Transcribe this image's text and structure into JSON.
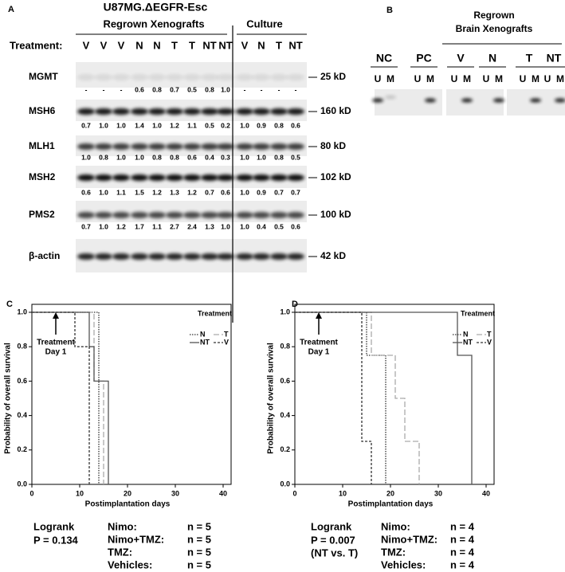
{
  "panels": [
    "A",
    "B",
    "C",
    "D"
  ],
  "panel_a": {
    "title": "U87MG.ΔEGFR-Esc",
    "groups": [
      "Regrown Xenografts",
      "Culture"
    ],
    "treatment_label": "Treatment:",
    "lanes": [
      "V",
      "V",
      "V",
      "N",
      "N",
      "T",
      "T",
      "NT",
      "NT",
      "V",
      "N",
      "T",
      "NT"
    ],
    "rows": [
      {
        "name": "MGMT",
        "size": "25 kD",
        "values": [
          "-",
          "-",
          "-",
          "0.6",
          "0.8",
          "0.7",
          "0.5",
          "0.8",
          "1.0",
          "-",
          "-",
          "-",
          "-"
        ]
      },
      {
        "name": "MSH6",
        "size": "160 kD",
        "values": [
          "0.7",
          "1.0",
          "1.0",
          "1.4",
          "1.0",
          "1.2",
          "1.1",
          "0.5",
          "0.2",
          "1.0",
          "0.9",
          "0.8",
          "0.6"
        ]
      },
      {
        "name": "MLH1",
        "size": "80 kD",
        "values": [
          "1.0",
          "0.8",
          "1.0",
          "1.0",
          "0.8",
          "0.8",
          "0.6",
          "0.4",
          "0.3",
          "1.0",
          "1.0",
          "0.8",
          "0.5"
        ]
      },
      {
        "name": "MSH2",
        "size": "102 kD",
        "values": [
          "0.6",
          "1.0",
          "1.1",
          "1.5",
          "1.2",
          "1.3",
          "1.2",
          "0.7",
          "0.6",
          "1.0",
          "0.9",
          "0.7",
          "0.7"
        ]
      },
      {
        "name": "PMS2",
        "size": "100 kD",
        "values": [
          "0.7",
          "1.0",
          "1.2",
          "1.7",
          "1.1",
          "2.7",
          "2.4",
          "1.3",
          "1.0",
          "1.0",
          "0.4",
          "0.5",
          "0.6"
        ]
      },
      {
        "name": "β-actin",
        "size": "42 kD"
      }
    ]
  },
  "panel_b": {
    "title": [
      "Regrown",
      "Brain Xenografts"
    ],
    "groups": [
      {
        "name": "NC",
        "lanes": [
          "U",
          "M"
        ]
      },
      {
        "name": "PC",
        "lanes": [
          "U",
          "M"
        ]
      },
      {
        "name": "V",
        "lanes": [
          "U",
          "M"
        ]
      },
      {
        "name": "N",
        "lanes": [
          "U",
          "M"
        ]
      },
      {
        "name": "T",
        "lanes": [
          "U",
          "M"
        ]
      },
      {
        "name": "NT",
        "lanes": [
          "U",
          "M"
        ]
      }
    ]
  },
  "chart_data": [
    {
      "type": "line",
      "step": "post",
      "x_label": "Postimplantation days",
      "y_label": "Probability of overall survival",
      "xlim": [
        0,
        40
      ],
      "ylim": [
        0,
        1.0
      ],
      "xticks": [
        0,
        10,
        20,
        30,
        40
      ],
      "yticks": [
        {
          "value": 0,
          "label": "0.0"
        },
        {
          "value": 0.2,
          "label": "0.2"
        },
        {
          "value": 0.4,
          "label": "0.4"
        },
        {
          "value": 0.6,
          "label": "0.6"
        },
        {
          "value": 0.8,
          "label": "0.8"
        },
        {
          "value": 1.0,
          "label": "1.0"
        }
      ],
      "legend_title": "Treatment",
      "legend": "upper right",
      "annotation": {
        "text": [
          "Treatment",
          "Day 1"
        ],
        "x": 5
      },
      "series": [
        {
          "name": "N",
          "color": "#333333",
          "style": "dotted",
          "x": [
            0,
            14
          ],
          "values": [
            1.0,
            0
          ]
        },
        {
          "name": "T",
          "color": "#aaaaaa",
          "style": "dashed",
          "x": [
            0,
            13,
            15
          ],
          "values": [
            1.0,
            0.6,
            0
          ]
        },
        {
          "name": "NT",
          "color": "#555555",
          "style": "solid",
          "x": [
            0,
            12,
            13,
            16
          ],
          "values": [
            1.0,
            0.8,
            0.6,
            0
          ]
        },
        {
          "name": "V",
          "color": "#333333",
          "style": "dashdot",
          "x": [
            0,
            9,
            12
          ],
          "values": [
            1.0,
            0.8,
            0
          ]
        }
      ],
      "stats": {
        "test": "Logrank",
        "p": [
          "P = 0.134"
        ],
        "groups": [
          {
            "label": "Nimo:",
            "n": "n = 5"
          },
          {
            "label": "Nimo+TMZ:",
            "n": "n = 5"
          },
          {
            "label": "TMZ:",
            "n": "n = 5"
          },
          {
            "label": "Vehicles:",
            "n": "n = 5"
          }
        ]
      }
    },
    {
      "type": "line",
      "step": "post",
      "x_label": "Postimplantation days",
      "y_label": "Probability of overall survival",
      "xlim": [
        0,
        40
      ],
      "ylim": [
        0,
        1.0
      ],
      "xticks": [
        0,
        10,
        20,
        30,
        40
      ],
      "yticks": [
        {
          "value": 0,
          "label": "0.0"
        },
        {
          "value": 0.2,
          "label": "0.2"
        },
        {
          "value": 0.4,
          "label": "0.4"
        },
        {
          "value": 0.6,
          "label": "0.6"
        },
        {
          "value": 0.8,
          "label": "0.8"
        },
        {
          "value": 1.0,
          "label": "1.0"
        }
      ],
      "legend_title": "Treatment",
      "legend": "upper right",
      "annotation": {
        "text": [
          "Treatment",
          "Day 1"
        ],
        "x": 5
      },
      "series": [
        {
          "name": "N",
          "color": "#333333",
          "style": "dotted",
          "x": [
            0,
            15,
            19
          ],
          "values": [
            1.0,
            0.75,
            0
          ]
        },
        {
          "name": "T",
          "color": "#aaaaaa",
          "style": "dashed",
          "x": [
            0,
            16,
            21,
            23,
            26
          ],
          "values": [
            1.0,
            0.75,
            0.5,
            0.25,
            0
          ]
        },
        {
          "name": "NT",
          "color": "#555555",
          "style": "solid",
          "x": [
            0,
            34,
            37
          ],
          "values": [
            1.0,
            0.75,
            0
          ]
        },
        {
          "name": "V",
          "color": "#333333",
          "style": "dashdot",
          "x": [
            0,
            14,
            16
          ],
          "values": [
            1.0,
            0.25,
            0
          ]
        }
      ],
      "stats": {
        "test": "Logrank",
        "p": [
          "P = 0.007",
          "(NT vs. T)"
        ],
        "groups": [
          {
            "label": "Nimo:",
            "n": "n = 4"
          },
          {
            "label": "Nimo+TMZ:",
            "n": "n = 4"
          },
          {
            "label": "TMZ:",
            "n": "n = 4"
          },
          {
            "label": "Vehicles:",
            "n": "n = 4"
          }
        ]
      }
    }
  ]
}
